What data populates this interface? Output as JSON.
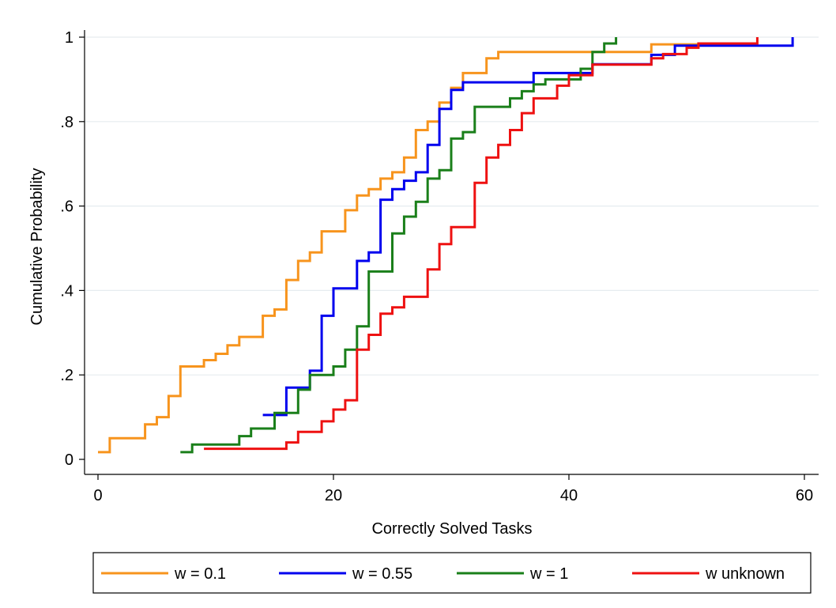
{
  "chart_data": {
    "type": "line",
    "step": true,
    "xlabel": "Correctly Solved Tasks",
    "ylabel": "Cumulative Probability",
    "xlim": [
      0,
      60
    ],
    "ylim": [
      0,
      1
    ],
    "xticks": [
      0,
      20,
      40,
      60
    ],
    "xtick_labels": [
      "0",
      "20",
      "40",
      "60"
    ],
    "yticks": [
      0,
      0.2,
      0.4,
      0.6,
      0.8,
      1
    ],
    "ytick_labels": [
      "0",
      ".2",
      ".4",
      ".6",
      ".8",
      "1"
    ],
    "grid": "horizontal",
    "legend_position": "bottom",
    "series": [
      {
        "name": "w = 0.1",
        "color": "#f7941d",
        "points": [
          [
            0,
            0.017
          ],
          [
            1,
            0.05
          ],
          [
            4,
            0.083
          ],
          [
            5,
            0.1
          ],
          [
            6,
            0.15
          ],
          [
            7,
            0.22
          ],
          [
            9,
            0.235
          ],
          [
            10,
            0.25
          ],
          [
            11,
            0.27
          ],
          [
            12,
            0.29
          ],
          [
            14,
            0.34
          ],
          [
            15,
            0.355
          ],
          [
            16,
            0.425
          ],
          [
            17,
            0.47
          ],
          [
            18,
            0.49
          ],
          [
            19,
            0.54
          ],
          [
            21,
            0.59
          ],
          [
            22,
            0.625
          ],
          [
            23,
            0.64
          ],
          [
            24,
            0.665
          ],
          [
            25,
            0.68
          ],
          [
            26,
            0.715
          ],
          [
            27,
            0.78
          ],
          [
            28,
            0.8
          ],
          [
            29,
            0.845
          ],
          [
            30,
            0.88
          ],
          [
            31,
            0.915
          ],
          [
            33,
            0.95
          ],
          [
            34,
            0.965
          ],
          [
            47,
            0.983
          ],
          [
            52,
            0.983
          ]
        ]
      },
      {
        "name": "w = 0.55",
        "color": "#0000ee",
        "points": [
          [
            14,
            0.105
          ],
          [
            16,
            0.17
          ],
          [
            18,
            0.21
          ],
          [
            19,
            0.34
          ],
          [
            20,
            0.405
          ],
          [
            22,
            0.47
          ],
          [
            23,
            0.49
          ],
          [
            24,
            0.615
          ],
          [
            25,
            0.64
          ],
          [
            26,
            0.66
          ],
          [
            27,
            0.68
          ],
          [
            28,
            0.745
          ],
          [
            29,
            0.83
          ],
          [
            30,
            0.875
          ],
          [
            31,
            0.893
          ],
          [
            37,
            0.915
          ],
          [
            42,
            0.936
          ],
          [
            47,
            0.958
          ],
          [
            49,
            0.98
          ],
          [
            59,
            0.98
          ],
          [
            59,
            1.0
          ]
        ]
      },
      {
        "name": "w = 1",
        "color": "#1a7f1a",
        "points": [
          [
            7,
            0.017
          ],
          [
            8,
            0.035
          ],
          [
            12,
            0.055
          ],
          [
            13,
            0.073
          ],
          [
            15,
            0.11
          ],
          [
            17,
            0.165
          ],
          [
            18,
            0.2
          ],
          [
            20,
            0.22
          ],
          [
            21,
            0.26
          ],
          [
            22,
            0.315
          ],
          [
            23,
            0.445
          ],
          [
            25,
            0.535
          ],
          [
            26,
            0.575
          ],
          [
            27,
            0.61
          ],
          [
            28,
            0.665
          ],
          [
            29,
            0.685
          ],
          [
            30,
            0.76
          ],
          [
            31,
            0.775
          ],
          [
            32,
            0.835
          ],
          [
            35,
            0.855
          ],
          [
            36,
            0.872
          ],
          [
            37,
            0.888
          ],
          [
            38,
            0.9
          ],
          [
            41,
            0.925
          ],
          [
            42,
            0.965
          ],
          [
            43,
            0.985
          ],
          [
            44,
            1.0
          ]
        ]
      },
      {
        "name": "w unknown",
        "color": "#ee1111",
        "points": [
          [
            9,
            0.025
          ],
          [
            16,
            0.04
          ],
          [
            17,
            0.065
          ],
          [
            19,
            0.09
          ],
          [
            20,
            0.118
          ],
          [
            21,
            0.14
          ],
          [
            22,
            0.165
          ],
          [
            22,
            0.26
          ],
          [
            23,
            0.295
          ],
          [
            24,
            0.345
          ],
          [
            25,
            0.36
          ],
          [
            26,
            0.385
          ],
          [
            28,
            0.45
          ],
          [
            29,
            0.51
          ],
          [
            30,
            0.55
          ],
          [
            32,
            0.655
          ],
          [
            33,
            0.715
          ],
          [
            34,
            0.745
          ],
          [
            35,
            0.78
          ],
          [
            36,
            0.82
          ],
          [
            37,
            0.855
          ],
          [
            39,
            0.885
          ],
          [
            40,
            0.91
          ],
          [
            42,
            0.935
          ],
          [
            47,
            0.95
          ],
          [
            48,
            0.96
          ],
          [
            50,
            0.975
          ],
          [
            51,
            0.985
          ],
          [
            56,
            0.985
          ],
          [
            56,
            1.0
          ]
        ]
      }
    ]
  }
}
